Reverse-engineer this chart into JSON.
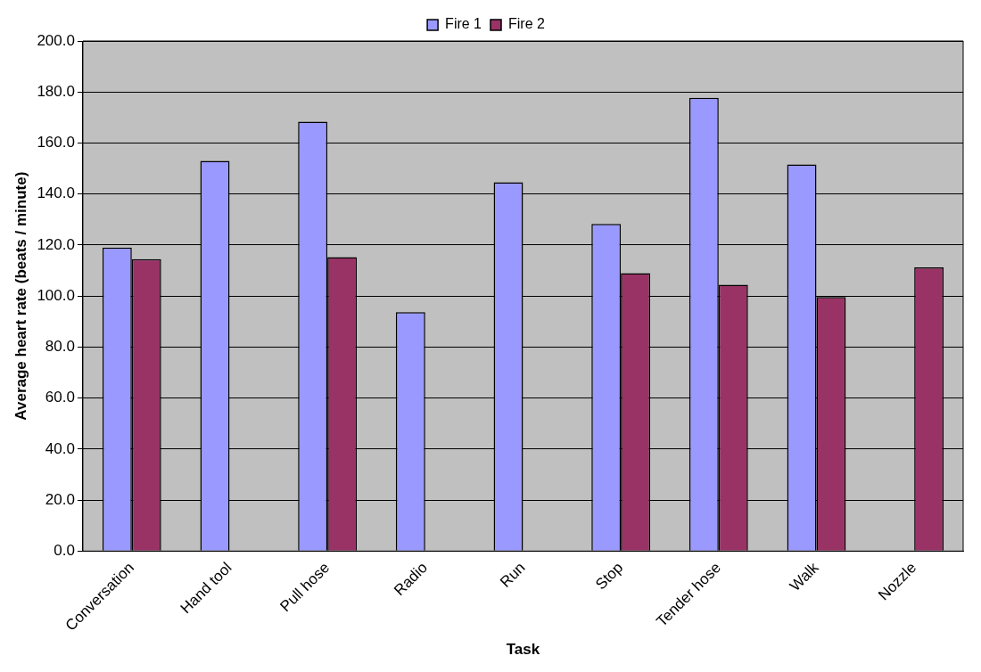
{
  "chart_data": {
    "type": "bar",
    "xlabel": "Task",
    "ylabel": "Average heart rate (beats / minute)",
    "categories": [
      "Conversation",
      "Hand tool",
      "Pull hose",
      "Radio",
      "Run",
      "Stop",
      "Tender hose",
      "Walk",
      "Nozzle"
    ],
    "series": [
      {
        "name": "Fire 1",
        "color": "#9999ff",
        "values": [
          119.0,
          153.0,
          168.4,
          93.7,
          144.6,
          128.3,
          177.7,
          151.6,
          null
        ]
      },
      {
        "name": "Fire 2",
        "color": "#993366",
        "values": [
          114.5,
          null,
          115.3,
          null,
          null,
          109.0,
          104.4,
          99.6,
          111.2
        ]
      }
    ],
    "ylim": [
      0,
      200
    ],
    "yticks": [
      {
        "value": 0,
        "label": "0.0"
      },
      {
        "value": 20,
        "label": "20.0"
      },
      {
        "value": 40,
        "label": "40.0"
      },
      {
        "value": 60,
        "label": "60.0"
      },
      {
        "value": 80,
        "label": "80.0"
      },
      {
        "value": 100,
        "label": "100.0"
      },
      {
        "value": 120,
        "label": "120.0"
      },
      {
        "value": 140,
        "label": "140.0"
      },
      {
        "value": 160,
        "label": "160.0"
      },
      {
        "value": 180,
        "label": "180.0"
      },
      {
        "value": 200,
        "label": "200.0"
      }
    ],
    "grid": "y",
    "legend": "top"
  }
}
